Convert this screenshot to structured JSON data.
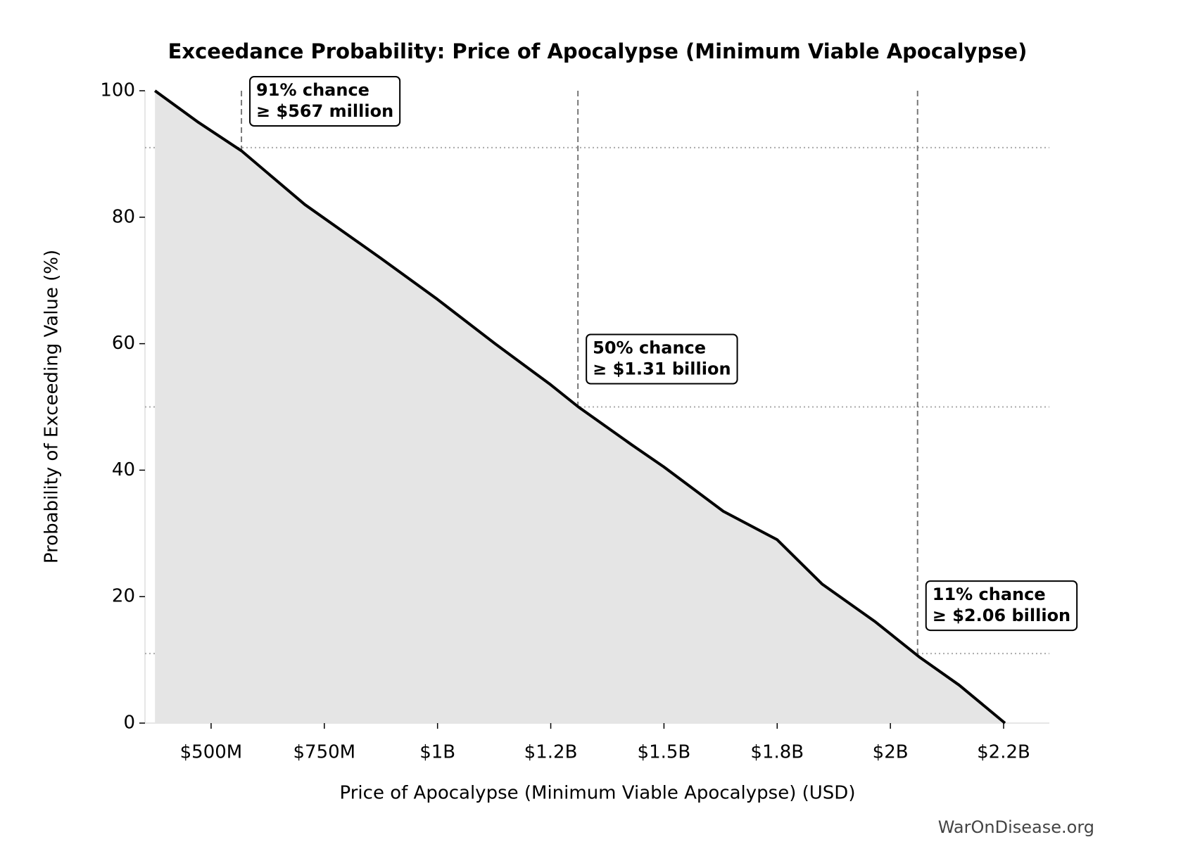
{
  "chart_data": {
    "type": "line",
    "title": "Exceedance Probability: Price of Apocalypse (Minimum Viable Apocalypse)",
    "x_label": "Price of Apocalypse (Minimum Viable Apocalypse) (USD)",
    "y_label": "Probability of Exceeding Value (%)",
    "source": "WarOnDisease.org",
    "x": [
      376000000,
      472000000,
      567000000,
      707000000,
      875000000,
      1000000000,
      1127000000,
      1250000000,
      1311000000,
      1429000000,
      1500000000,
      1631000000,
      1750000000,
      1849000000,
      1967000000,
      2063000000,
      2152000000,
      2253000000
    ],
    "values": [
      100,
      95,
      90.5,
      82,
      73.5,
      67,
      60,
      53.5,
      50,
      44,
      40.5,
      33.5,
      29,
      22,
      16,
      10.5,
      6,
      0
    ],
    "color": "#000000",
    "fill_color": "#e5e5e5",
    "xlim": [
      354000000,
      2351000000
    ],
    "xticks": [
      {
        "value": 500000000,
        "label": "$500M"
      },
      {
        "value": 750000000,
        "label": "$750M"
      },
      {
        "value": 1000000000,
        "label": "$1B"
      },
      {
        "value": 1250000000,
        "label": "$1.2B"
      },
      {
        "value": 1500000000,
        "label": "$1.5B"
      },
      {
        "value": 1750000000,
        "label": "$1.8B"
      },
      {
        "value": 2000000000,
        "label": "$2B"
      },
      {
        "value": 2250000000,
        "label": "$2.2B"
      }
    ],
    "ylim": [
      0,
      100
    ],
    "yticks": [
      0,
      20,
      40,
      60,
      80,
      100
    ],
    "markers": [
      {
        "percent": 91,
        "value": 567000000,
        "line1": "91% chance",
        "line2": "≥ $567 million"
      },
      {
        "percent": 50,
        "value": 1310000000,
        "line1": "50% chance",
        "line2": "≥ $1.31 billion"
      },
      {
        "percent": 11,
        "value": 2060000000,
        "line1": "11% chance",
        "line2": "≥ $2.06 billion"
      }
    ]
  }
}
